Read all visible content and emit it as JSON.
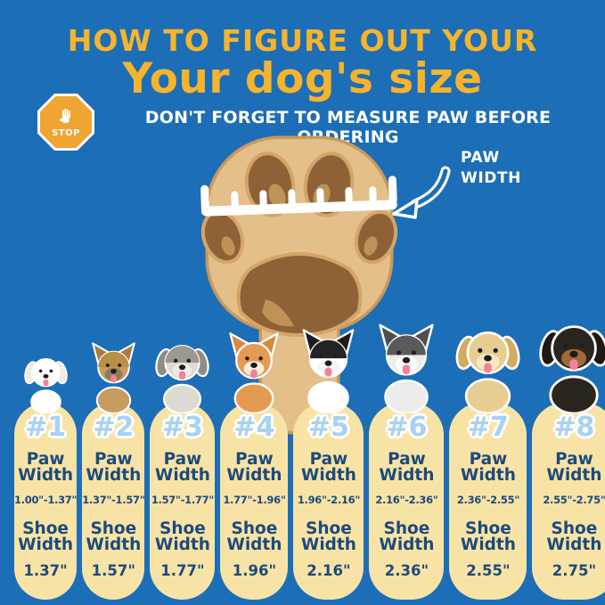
{
  "colors": {
    "background": "#1c6eb7",
    "title_yellow": "#f6b42d",
    "column_cream": "#f8e3a6",
    "navy_text": "#1c4a7c",
    "number_blue": "#a8d2f0",
    "stop_orange": "#f0a532",
    "paw_tan": "#e4bf8a",
    "paw_outline": "#c9995c",
    "paw_pad": "#8f6136",
    "white": "#ffffff"
  },
  "header": {
    "line1": "HOW TO FIGURE OUT YOUR",
    "line2": "Your dog's size",
    "stop_label": "STOP",
    "warning": "DON'T FORGET TO MEASURE PAW BEFORE ORDERING"
  },
  "paw_diagram": {
    "label": "PAW\nWIDTH"
  },
  "sizes": [
    {
      "number": "#1",
      "breed": "bichon-frise",
      "paw_label": "Paw\nWidth",
      "paw_range": "1.00\"-1.37\"",
      "shoe_label": "Shoe\nWidth",
      "shoe_width": "1.37\"",
      "dog": {
        "ears": "floppy",
        "fur": "#ffffff",
        "ear": "#f1ece1",
        "muzzle": "#fbf8f2",
        "cap": "",
        "h": 74
      }
    },
    {
      "number": "#2",
      "breed": "yorkshire-terrier",
      "paw_label": "Paw\nWidth",
      "paw_range": "1.37\"-1.57\"",
      "shoe_label": "Shoe\nWidth",
      "shoe_width": "1.57\"",
      "dog": {
        "ears": "pointy",
        "fur": "#c79c60",
        "ear": "#ab7c3c",
        "muzzle": "#8f7b5e",
        "cap": "#b98e48",
        "h": 84
      }
    },
    {
      "number": "#3",
      "breed": "bearded-collie",
      "paw_label": "Paw\nWidth",
      "paw_range": "1.57\"-1.77\"",
      "shoe_label": "Shoe\nWidth",
      "shoe_width": "1.77\"",
      "dog": {
        "ears": "floppy",
        "fur": "#dddad4",
        "ear": "#8f8b85",
        "muzzle": "#efece6",
        "cap": "#9d9992",
        "h": 92
      }
    },
    {
      "number": "#4",
      "breed": "shiba-inu",
      "paw_label": "Paw\nWidth",
      "paw_range": "1.77\"-1.96\"",
      "shoe_label": "Shoe\nWidth",
      "shoe_width": "1.96\"",
      "dog": {
        "ears": "pointy",
        "fur": "#e59a52",
        "ear": "#d88a40",
        "muzzle": "#f9eed9",
        "cap": "",
        "h": 96
      }
    },
    {
      "number": "#5",
      "breed": "border-collie",
      "paw_label": "Paw\nWidth",
      "paw_range": "1.96\"-2.16\"",
      "shoe_label": "Shoe\nWidth",
      "shoe_width": "2.16\"",
      "dog": {
        "ears": "pointy",
        "fur": "#ffffff",
        "ear": "#1c1c1c",
        "muzzle": "#f6f4f1",
        "cap": "#242424",
        "h": 100
      }
    },
    {
      "number": "#6",
      "breed": "husky",
      "paw_label": "Paw\nWidth",
      "paw_range": "2.16\"-2.36\"",
      "shoe_label": "Shoe\nWidth",
      "shoe_width": "2.36\"",
      "dog": {
        "ears": "pointy",
        "fur": "#ececec",
        "ear": "#4f4f4f",
        "muzzle": "#fafafa",
        "cap": "#5a5a5a",
        "h": 106
      }
    },
    {
      "number": "#7",
      "breed": "golden-retriever",
      "paw_label": "Paw\nWidth",
      "paw_range": "2.36\"-2.55\"",
      "shoe_label": "Shoe\nWidth",
      "shoe_width": "2.55\"",
      "dog": {
        "ears": "floppy",
        "fur": "#e8cd92",
        "ear": "#d2ab60",
        "muzzle": "#f3e7c5",
        "cap": "",
        "h": 110
      }
    },
    {
      "number": "#8",
      "breed": "rottweiler",
      "paw_label": "Paw\nWidth",
      "paw_range": "2.55\"-2.75\"",
      "shoe_label": "Shoe\nWidth",
      "shoe_width": "2.75\"",
      "dog": {
        "ears": "floppy",
        "fur": "#2b2520",
        "ear": "#1d1813",
        "muzzle": "#a06a38",
        "cap": "",
        "h": 118
      }
    }
  ]
}
